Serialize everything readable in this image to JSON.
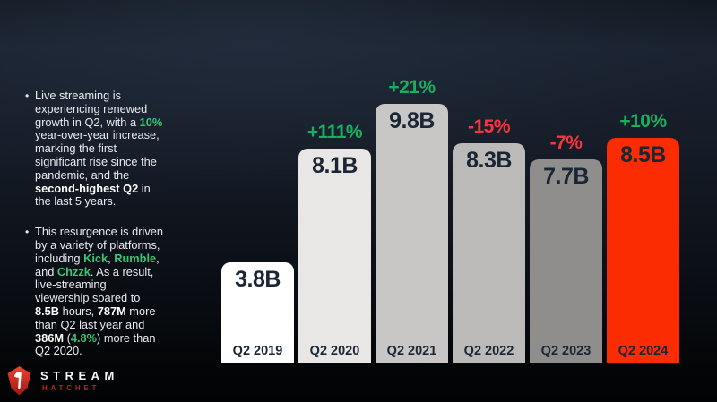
{
  "colors": {
    "green_chart": "#16b15e",
    "green_text": "#35c673",
    "red_pct": "#f8353f",
    "navy_label": "#1b2634",
    "body_text": "#e9ebee"
  },
  "sidebar": {
    "bullets": [
      {
        "lines": [
          [
            {
              "t": "Live streaming is"
            }
          ],
          [
            {
              "t": "experiencing renewed"
            }
          ],
          [
            {
              "t": "growth in Q2, with a "
            },
            {
              "t": "10%",
              "s": "g"
            }
          ],
          [
            {
              "t": "year-over-year increase,"
            }
          ],
          [
            {
              "t": "marking the first"
            }
          ],
          [
            {
              "t": "significant rise since the"
            }
          ],
          [
            {
              "t": "pandemic, and the"
            }
          ],
          [
            {
              "t": "second-highest Q2",
              "s": "b"
            },
            {
              "t": " in"
            }
          ],
          [
            {
              "t": "the last 5 years."
            }
          ]
        ]
      },
      {
        "lines": [
          [
            {
              "t": "This resurgence is driven"
            }
          ],
          [
            {
              "t": "by a variety of platforms,"
            }
          ],
          [
            {
              "t": "including "
            },
            {
              "t": "Kick",
              "s": "g"
            },
            {
              "t": ", "
            },
            {
              "t": "Rumble",
              "s": "g"
            },
            {
              "t": ","
            }
          ],
          [
            {
              "t": "and "
            },
            {
              "t": "Chzzk",
              "s": "g"
            },
            {
              "t": ". As a result,"
            }
          ],
          [
            {
              "t": "live-streaming"
            }
          ],
          [
            {
              "t": "viewership soared to"
            }
          ],
          [
            {
              "t": "8.5B",
              "s": "b"
            },
            {
              "t": " hours, "
            },
            {
              "t": "787M",
              "s": "b"
            },
            {
              "t": " more"
            }
          ],
          [
            {
              "t": "than Q2 last year and"
            }
          ],
          [
            {
              "t": "386M",
              "s": "b"
            },
            {
              "t": " ("
            },
            {
              "t": "4.8%",
              "s": "g"
            },
            {
              "t": ") more than"
            }
          ],
          [
            {
              "t": "Q2 2020."
            }
          ]
        ]
      }
    ]
  },
  "chart_data": {
    "type": "bar",
    "categories": [
      "Q2 2019",
      "Q2 2020",
      "Q2 2021",
      "Q2 2022",
      "Q2 2023",
      "Q2 2024"
    ],
    "values": [
      3.8,
      8.1,
      9.8,
      8.3,
      7.7,
      8.5
    ],
    "value_labels": [
      "3.8B",
      "8.1B",
      "9.8B",
      "8.3B",
      "7.7B",
      "8.5B"
    ],
    "pct_change": [
      "",
      "+111%",
      "+21%",
      "-15%",
      "-7%",
      "+10%"
    ],
    "pct_direction": [
      "",
      "up",
      "up",
      "down",
      "down",
      "up"
    ],
    "bar_colors": [
      "#ffffff",
      "#e8e7e6",
      "#c9c7c5",
      "#bcbab8",
      "#8f8e8c",
      "#fb2b02"
    ],
    "ylim": [
      0,
      10
    ],
    "grid": false,
    "legend": false,
    "value_label_position": "inside-top",
    "category_label_position": "inside-bottom",
    "pct_label_position": "above-bar"
  },
  "logo": {
    "line1": "STREAM",
    "line2": "HATCHET"
  }
}
